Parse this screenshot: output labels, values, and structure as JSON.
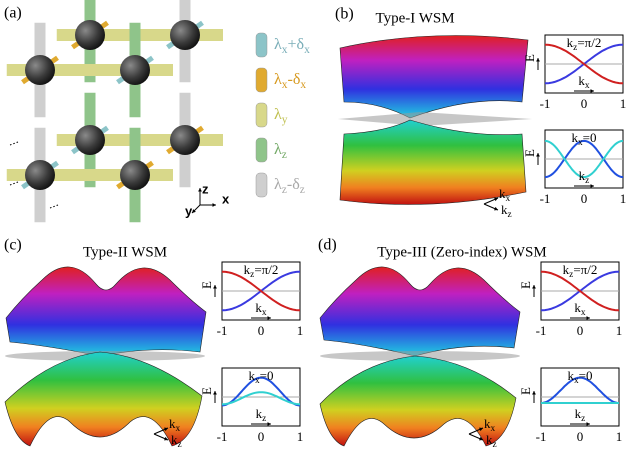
{
  "panels": [
    {
      "label": "(a)",
      "legend": [
        [
          {
            "t": "λ"
          },
          {
            "s": "x"
          },
          {
            "t": "+δ"
          },
          {
            "s": "x"
          }
        ],
        [
          {
            "t": "λ"
          },
          {
            "s": "x"
          },
          {
            "t": "-δ"
          },
          {
            "s": "x"
          }
        ],
        [
          {
            "t": "λ"
          },
          {
            "s": "y"
          }
        ],
        [
          {
            "t": "λ"
          },
          {
            "s": "z"
          }
        ],
        [
          {
            "t": "λ"
          },
          {
            "s": "z"
          },
          {
            "t": "-δ"
          },
          {
            "s": "z"
          }
        ]
      ],
      "axis_labels": [
        "z",
        "y",
        "x"
      ]
    },
    {
      "label": "(b)",
      "title": "Type-I WSM",
      "surface_axes": [
        [
          {
            "t": "k"
          },
          {
            "s": "x"
          }
        ],
        [
          {
            "t": "k"
          },
          {
            "s": "z"
          }
        ]
      ],
      "plots": [
        {
          "note": [
            {
              "t": "k"
            },
            {
              "s": "z"
            },
            {
              "t": "=π/2"
            }
          ],
          "ylabel": "E",
          "xlabel": [
            {
              "t": "k"
            },
            {
              "s": "x"
            }
          ],
          "xticks": [
            "-1",
            "0",
            "1"
          ]
        },
        {
          "note": [
            {
              "t": "k"
            },
            {
              "s": "x"
            },
            {
              "t": "=0"
            }
          ],
          "ylabel": "E",
          "xlabel": [
            {
              "t": "k"
            },
            {
              "s": "z"
            }
          ],
          "xticks": [
            "-1",
            "0",
            "1"
          ]
        }
      ]
    },
    {
      "label": "(c)",
      "title": "Type-II WSM",
      "surface_axes": [
        [
          {
            "t": "k"
          },
          {
            "s": "x"
          }
        ],
        [
          {
            "t": "k"
          },
          {
            "s": "z"
          }
        ]
      ],
      "plots": [
        {
          "note": [
            {
              "t": "k"
            },
            {
              "s": "z"
            },
            {
              "t": "=π/2"
            }
          ],
          "ylabel": "E",
          "xlabel": [
            {
              "t": "k"
            },
            {
              "s": "x"
            }
          ],
          "xticks": [
            "-1",
            "0",
            "1"
          ]
        },
        {
          "note": [
            {
              "t": "k"
            },
            {
              "s": "x"
            },
            {
              "t": "=0"
            }
          ],
          "ylabel": "E",
          "xlabel": [
            {
              "t": "k"
            },
            {
              "s": "z"
            }
          ],
          "xticks": [
            "-1",
            "0",
            "1"
          ]
        }
      ]
    },
    {
      "label": "(d)",
      "title": "Type-III (Zero-index) WSM",
      "surface_axes": [
        [
          {
            "t": "k"
          },
          {
            "s": "x"
          }
        ],
        [
          {
            "t": "k"
          },
          {
            "s": "z"
          }
        ]
      ],
      "plots": [
        {
          "note": [
            {
              "t": "k"
            },
            {
              "s": "z"
            },
            {
              "t": "=π/2"
            }
          ],
          "ylabel": "E",
          "xlabel": [
            {
              "t": "k"
            },
            {
              "s": "x"
            }
          ],
          "xticks": [
            "-1",
            "0",
            "1"
          ]
        },
        {
          "note": [
            {
              "t": "k"
            },
            {
              "s": "x"
            },
            {
              "t": "=0"
            }
          ],
          "ylabel": "E",
          "xlabel": [
            {
              "t": "k"
            },
            {
              "s": "z"
            }
          ],
          "xticks": [
            "-1",
            "0",
            "1"
          ]
        }
      ]
    }
  ]
}
